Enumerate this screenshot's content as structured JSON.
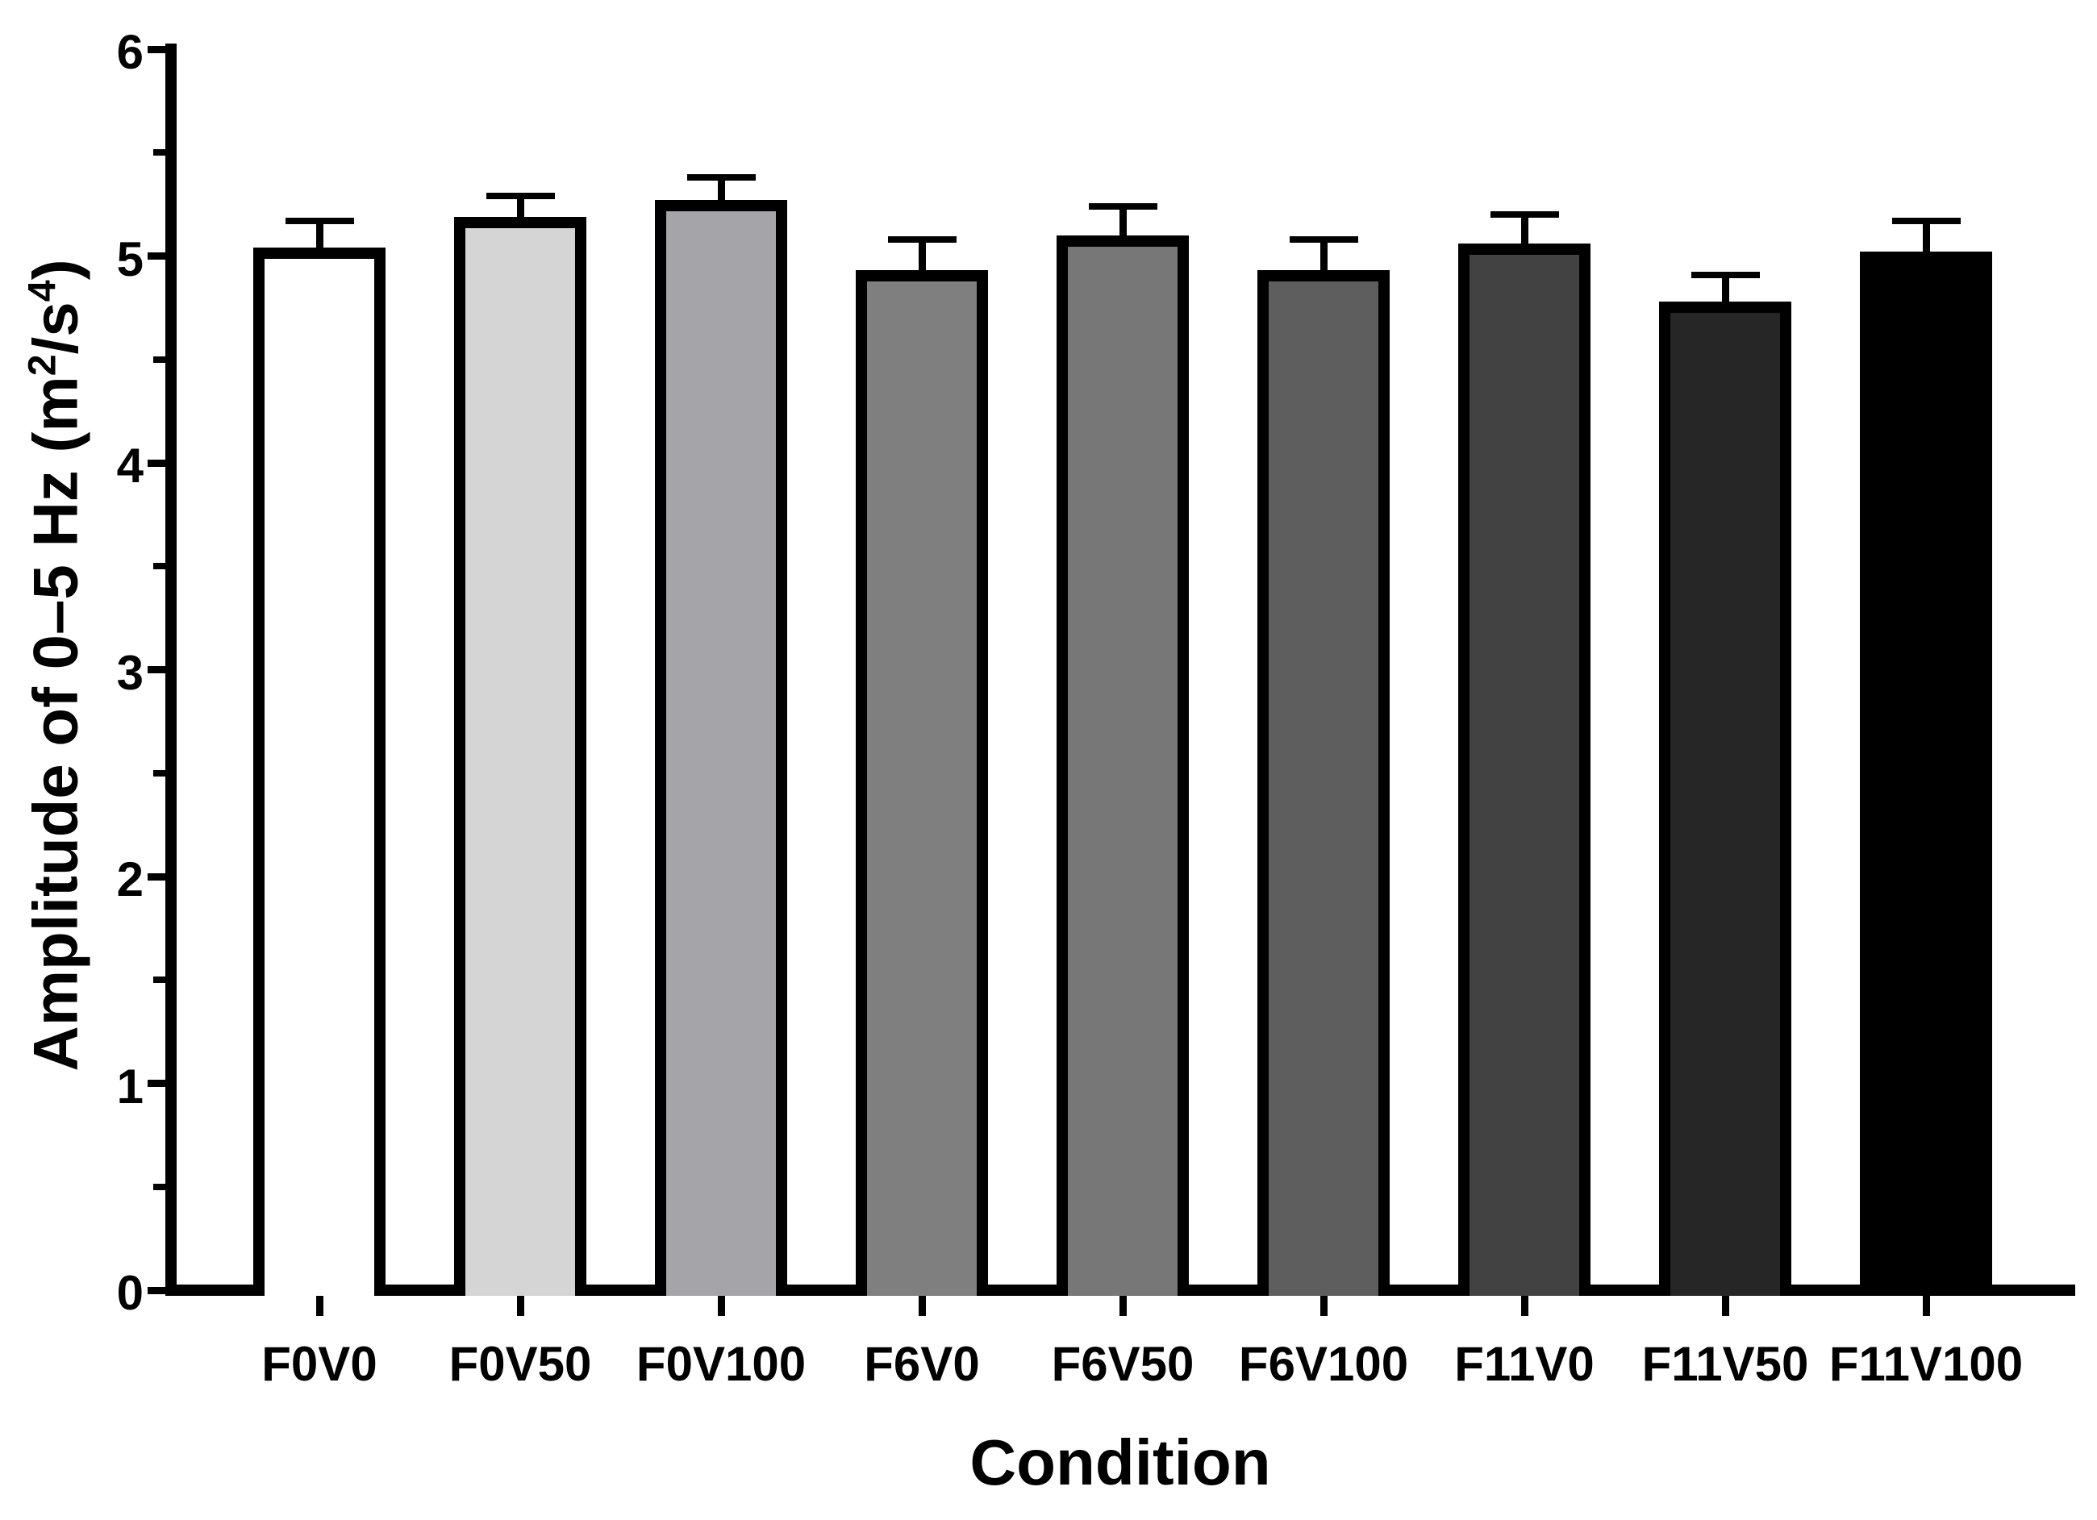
{
  "chart_data": {
    "type": "bar",
    "title": "",
    "xlabel": "Condition",
    "ylabel": {
      "parts": [
        {
          "text": "Amplitude of 0–5 Hz (m"
        },
        {
          "text": "2",
          "superscript": true
        },
        {
          "text": "/s"
        },
        {
          "text": "4",
          "superscript": true
        },
        {
          "text": ")"
        }
      ]
    },
    "categories": [
      "F0V0",
      "F0V50",
      "F0V100",
      "F6V0",
      "F6V50",
      "F6V100",
      "F11V0",
      "F11V50",
      "F11V100"
    ],
    "series": [
      {
        "name": "Amplitude of 0-5 Hz",
        "values": [
          5.04,
          5.19,
          5.27,
          4.93,
          5.1,
          4.93,
          5.06,
          4.78,
          5.02
        ],
        "errors_up": [
          0.13,
          0.1,
          0.11,
          0.15,
          0.14,
          0.15,
          0.14,
          0.13,
          0.15
        ]
      }
    ],
    "bar_fill_colors": [
      "#ffffff",
      "#d5d5d5",
      "#a4a4a9",
      "#7f7f7f",
      "#777777",
      "#5e5e5e",
      "#424242",
      "#262626",
      "#000000"
    ],
    "bar_border_color": "#000000",
    "error_bar_color": "#000000",
    "axis_color": "#000000",
    "ylim": [
      0,
      6
    ],
    "ytick_labels": [
      "0",
      "1",
      "2",
      "3",
      "4",
      "5",
      "6"
    ],
    "ytick_interval": 1,
    "yminor_interval": 0.5,
    "error_direction": "up",
    "grid": false,
    "legend": "none"
  }
}
